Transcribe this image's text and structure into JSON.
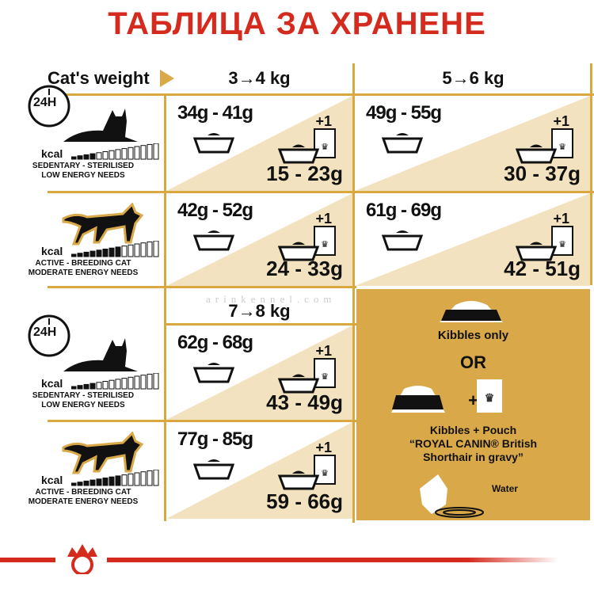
{
  "title": "ТАБЛИЦА ЗА ХРАНЕНЕ",
  "header": {
    "cats_weight": "Cat's weight",
    "col1": "3→4 kg",
    "col2": "5→6 kg",
    "col3": "7→8 kg"
  },
  "clock_label": "24H",
  "kcal": "kcal",
  "profiles": [
    {
      "line1": "SEDENTARY - STERILISED",
      "line2": "LOW ENERGY NEEDS"
    },
    {
      "line1": "ACTIVE - BREEDING CAT",
      "line2": "MODERATE ENERGY NEEDS"
    },
    {
      "line1": "SEDENTARY - STERILISED",
      "line2": "LOW ENERGY NEEDS"
    },
    {
      "line1": "ACTIVE - BREEDING CAT",
      "line2": "MODERATE ENERGY NEEDS"
    }
  ],
  "plus_one": "+1",
  "cells": [
    {
      "dry": "34g - 41g",
      "mixed": "15 - 23g"
    },
    {
      "dry": "49g - 55g",
      "mixed": "30 - 37g"
    },
    {
      "dry": "42g - 52g",
      "mixed": "24 - 33g"
    },
    {
      "dry": "61g - 69g",
      "mixed": "42 - 51g"
    },
    {
      "dry": "62g - 68g",
      "mixed": "43 - 49g"
    },
    {
      "dry": "77g - 85g",
      "mixed": "59 - 66g"
    }
  ],
  "legend": {
    "kibbles_only": "Kibbles only",
    "or": "OR",
    "plus": "+",
    "kibbles_pouch": "Kibbles + Pouch",
    "product": "“ROYAL CANIN® British",
    "product2": "Shorthair in gravy”",
    "water": "Water"
  },
  "watermark": "arinkennel.com",
  "colors": {
    "title": "#d52b1e",
    "gold": "#d9a849",
    "tan": "#f3e2bf"
  }
}
